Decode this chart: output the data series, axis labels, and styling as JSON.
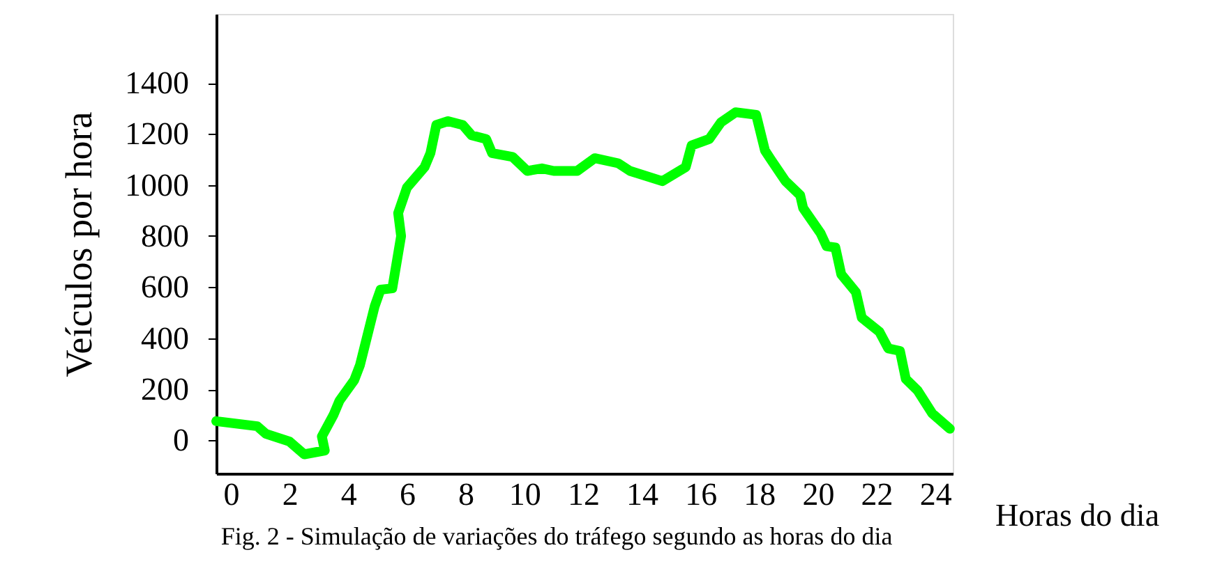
{
  "chart_data": {
    "type": "line",
    "xlabel": "Horas do dia",
    "ylabel": "Veículos por hora",
    "annotations": [
      "Fig. 2 - Simulação de variações do tráfego segundo as horas do dia"
    ],
    "xlim": [
      -0.5,
      24.6
    ],
    "ylim": [
      -130,
      1670
    ],
    "xticks": [
      0,
      2,
      4,
      6,
      8,
      10,
      12,
      14,
      16,
      18,
      20,
      22,
      24
    ],
    "yticks": [
      0,
      200,
      400,
      600,
      800,
      1000,
      1200,
      1400
    ],
    "grid": false,
    "line_style": "solid",
    "series": [
      {
        "color": "#00ff00",
        "x": [
          -0.5,
          0.9,
          1.2,
          2.0,
          2.5,
          3.2,
          3.1,
          3.5,
          3.7,
          4.2,
          4.4,
          4.9,
          5.1,
          5.5,
          5.8,
          5.7,
          6.0,
          6.6,
          6.8,
          7.0,
          7.4,
          7.9,
          8.2,
          8.7,
          8.9,
          9.6,
          10.1,
          10.6,
          11.0,
          11.8,
          12.4,
          13.2,
          13.6,
          14.7,
          15.5,
          15.7,
          16.3,
          16.7,
          17.2,
          17.9,
          18.2,
          18.4,
          18.9,
          19.4,
          19.5,
          20.1,
          20.3,
          20.6,
          20.8,
          21.3,
          21.5,
          22.1,
          22.4,
          22.8,
          23.0,
          23.4,
          23.9,
          24.5
        ],
        "values": [
          75,
          55,
          25,
          -5,
          -55,
          -40,
          15,
          100,
          155,
          235,
          295,
          525,
          590,
          595,
          800,
          890,
          990,
          1070,
          1125,
          1235,
          1250,
          1235,
          1195,
          1180,
          1125,
          1110,
          1055,
          1065,
          1055,
          1055,
          1105,
          1085,
          1055,
          1015,
          1070,
          1155,
          1180,
          1245,
          1285,
          1275,
          1135,
          1100,
          1015,
          960,
          910,
          810,
          760,
          755,
          650,
          580,
          480,
          425,
          360,
          350,
          240,
          195,
          105,
          45
        ]
      }
    ]
  }
}
